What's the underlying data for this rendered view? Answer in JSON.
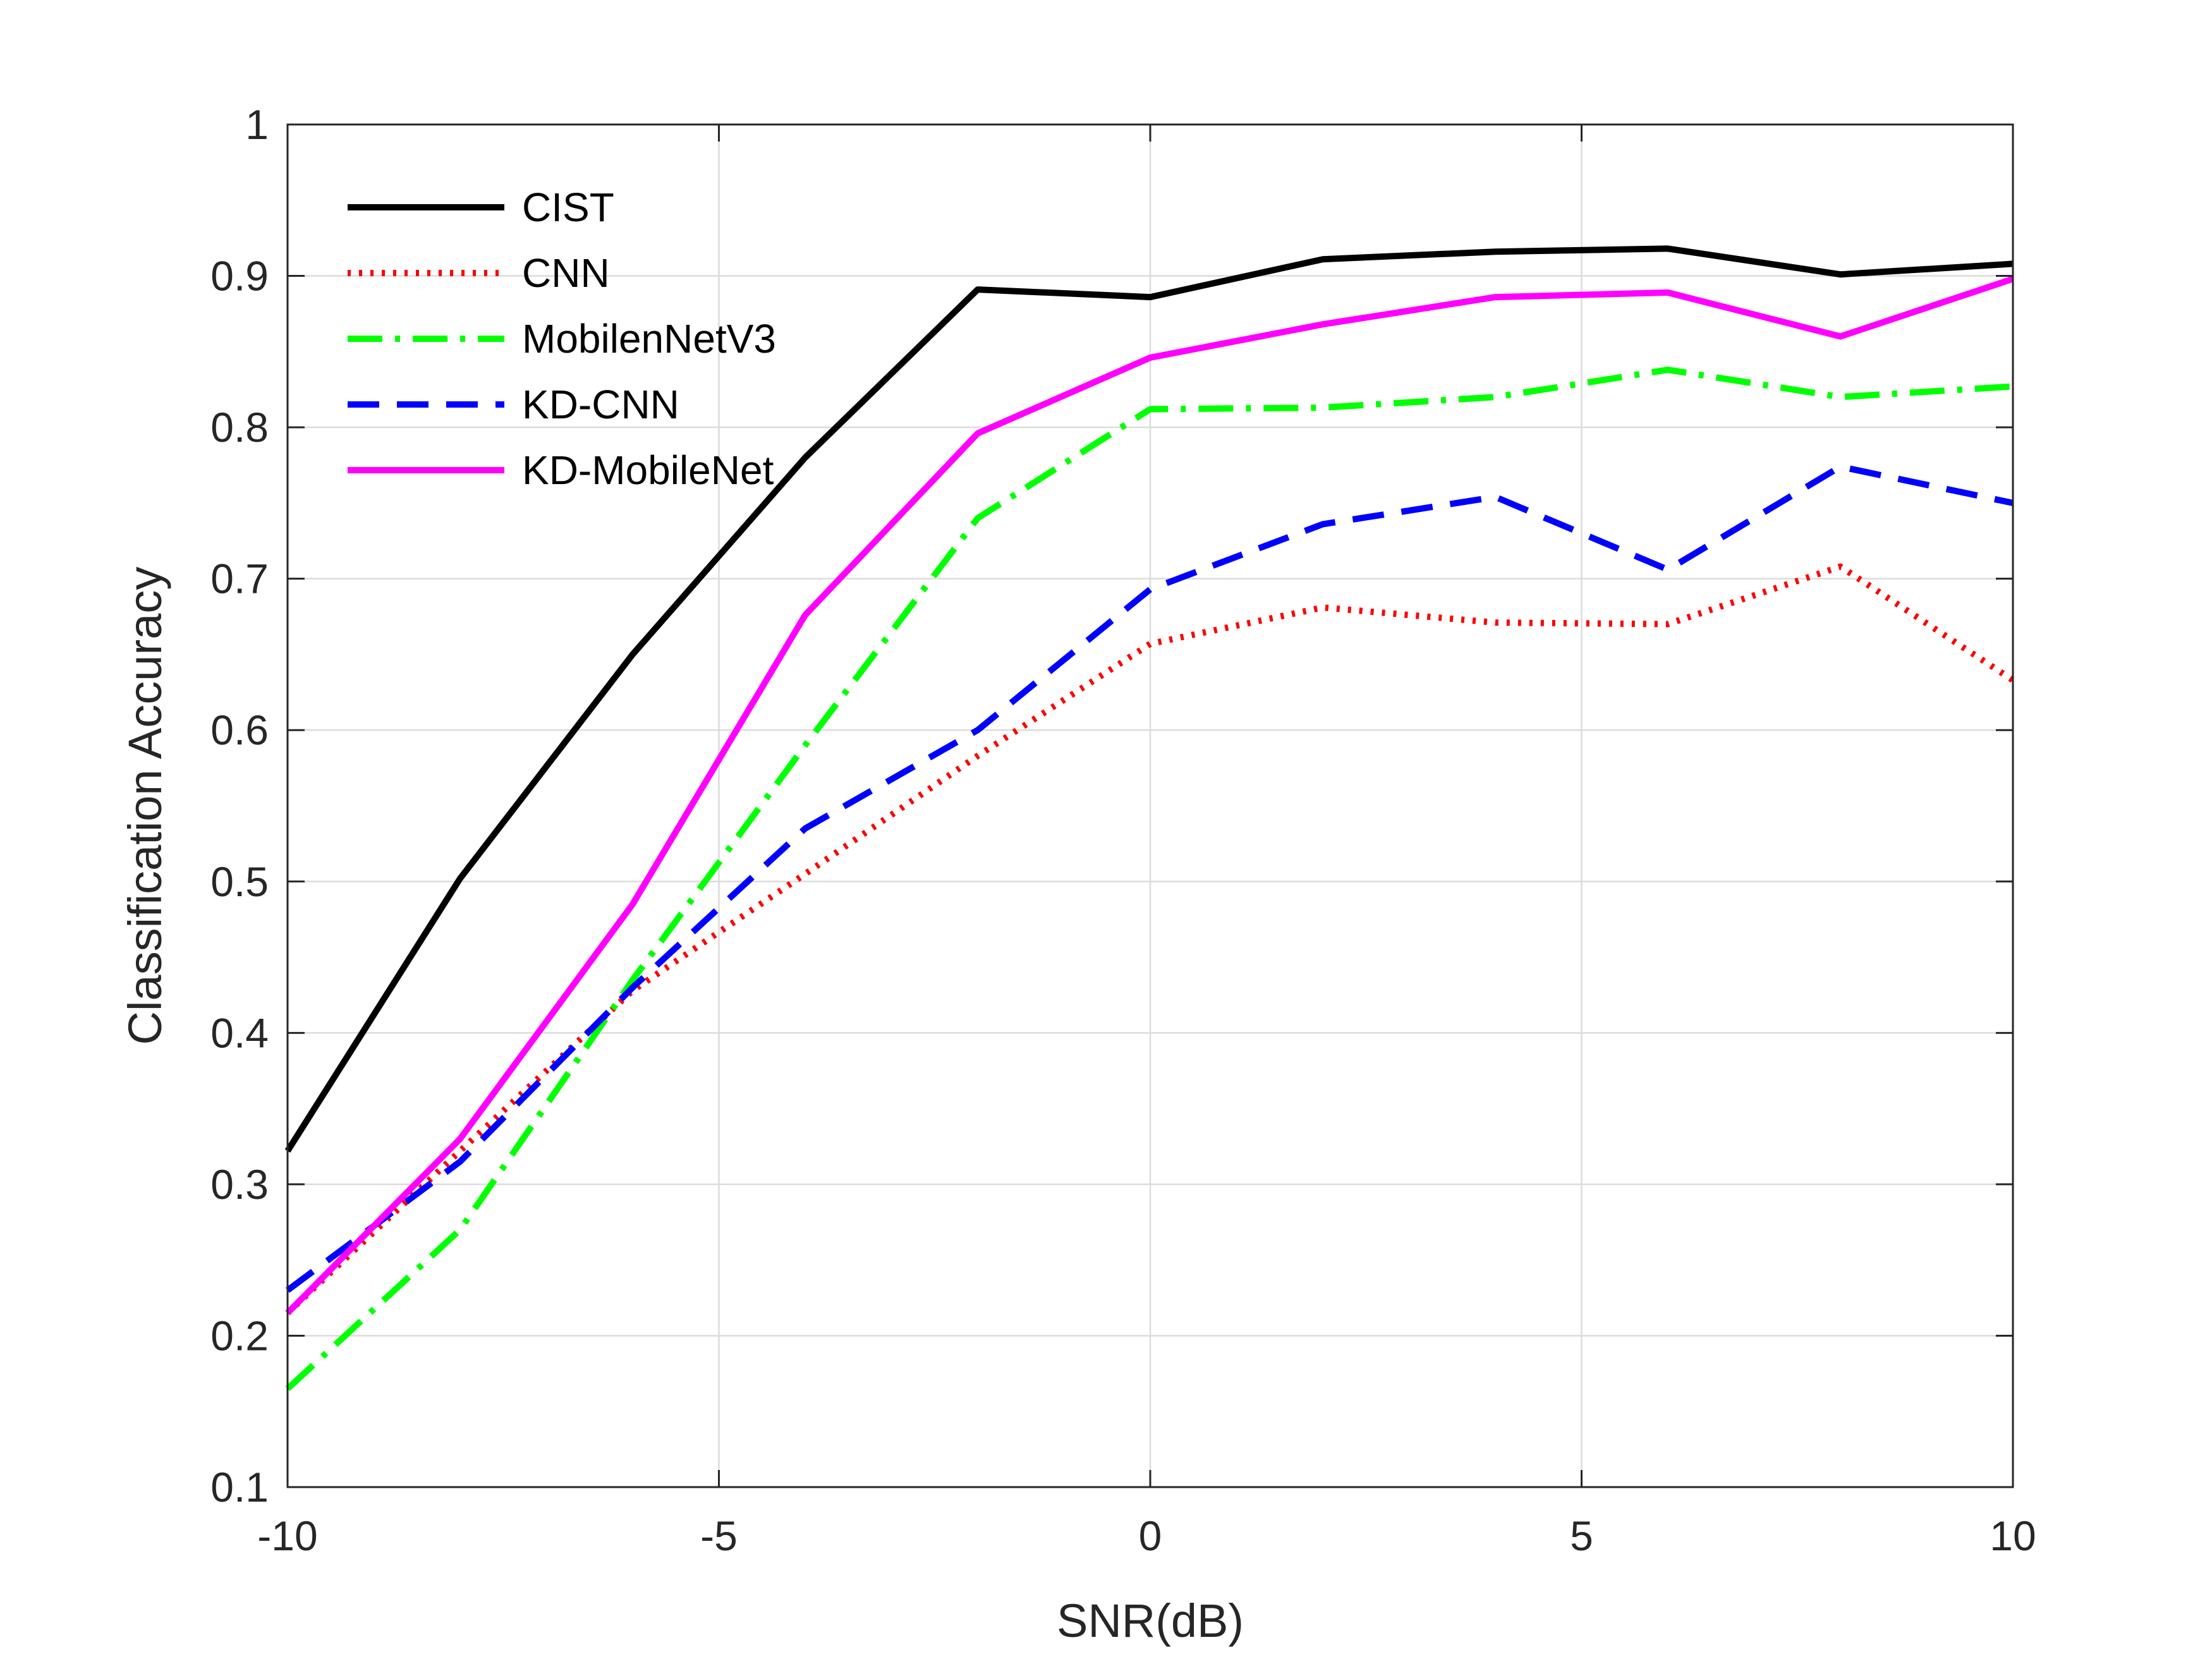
{
  "chart_data": {
    "type": "line",
    "title": "",
    "xlabel": "SNR(dB)",
    "ylabel": "Classification Accuracy",
    "xlim": [
      -10,
      10
    ],
    "ylim": [
      0.1,
      1
    ],
    "grid": true,
    "legend_position": "top-left",
    "x": [
      -10,
      -8,
      -6,
      -4,
      -2,
      0,
      2,
      4,
      6,
      8,
      10
    ],
    "xticks": [
      -10,
      -5,
      0,
      5,
      10
    ],
    "xtick_labels": [
      "-10",
      "-5",
      "0",
      "5",
      "10"
    ],
    "yticks": [
      0.1,
      0.2,
      0.3,
      0.4,
      0.5,
      0.6,
      0.7,
      0.8,
      0.9,
      1
    ],
    "ytick_labels": [
      "0.1",
      "0.2",
      "0.3",
      "0.4",
      "0.5",
      "0.6",
      "0.7",
      "0.8",
      "0.9",
      "1"
    ],
    "series": [
      {
        "name": "CIST",
        "color": "#000000",
        "style": "solid",
        "values": [
          0.322,
          0.502,
          0.65,
          0.78,
          0.891,
          0.886,
          0.911,
          0.916,
          0.918,
          0.901,
          0.908
        ]
      },
      {
        "name": "CNN",
        "color": "#ff0000",
        "style": "dotted",
        "values": [
          0.215,
          0.322,
          0.428,
          0.505,
          0.583,
          0.657,
          0.681,
          0.671,
          0.67,
          0.708,
          0.633
        ]
      },
      {
        "name": "MobilenNetV3",
        "color": "#00ff00",
        "style": "dashdot",
        "values": [
          0.165,
          0.27,
          0.435,
          0.59,
          0.74,
          0.812,
          0.813,
          0.82,
          0.838,
          0.82,
          0.827
        ]
      },
      {
        "name": "KD-CNN",
        "color": "#0000ff",
        "style": "dashed",
        "values": [
          0.23,
          0.315,
          0.43,
          0.535,
          0.6,
          0.693,
          0.736,
          0.754,
          0.706,
          0.774,
          0.75
        ]
      },
      {
        "name": "KD-MobileNet",
        "color": "#ff00ff",
        "style": "solid",
        "values": [
          0.215,
          0.33,
          0.485,
          0.676,
          0.796,
          0.846,
          0.868,
          0.886,
          0.889,
          0.86,
          0.898
        ]
      }
    ]
  }
}
